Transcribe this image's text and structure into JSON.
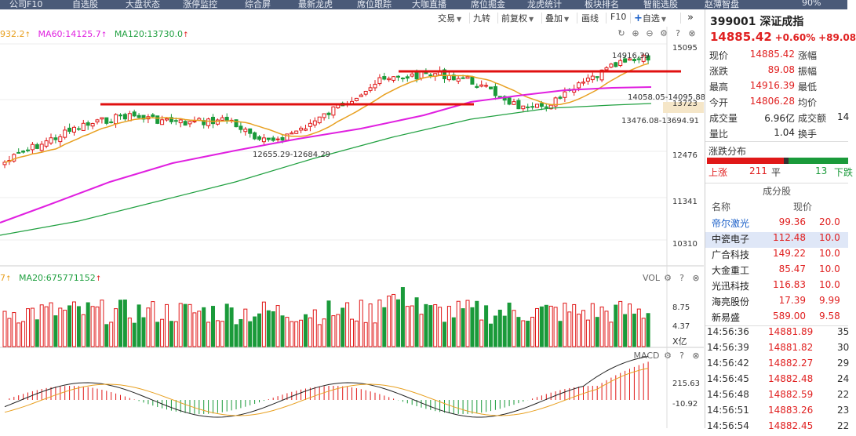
{
  "topnav": [
    "公司F10",
    "自选股",
    "大盘状态",
    "涨停监控",
    "综合屏",
    "最新龙虎",
    "席位跟踪",
    "大咖直播",
    "席位掘金",
    "龙虎统计",
    "板块排名",
    "智能选股",
    "赵薄智盘",
    "90%"
  ],
  "toolbar": {
    "items": [
      "交易",
      "九转",
      "前复权",
      "叠加",
      "画线",
      "F10",
      "自选"
    ],
    "plus": "+",
    "more": "»"
  },
  "ma_legend": {
    "ma_partial": "932.2",
    "ma60": "MA60:14125.7",
    "ma120": "MA120:13730.0",
    "ma60_color": "#e020e0",
    "ma120_color": "#20a040"
  },
  "vol_legend": {
    "partial": "7",
    "ma20": "MA20:675771152"
  },
  "price_axis": [
    "15095",
    "13723",
    "12476",
    "11341",
    "10310"
  ],
  "vol_axis": [
    "8.75",
    "4.37",
    "X亿"
  ],
  "macd_axis": [
    "215.63",
    "-10.92"
  ],
  "annotations": {
    "high": "14916.39",
    "range1": "14058.05-14095.88",
    "range2": "13476.08-13694.91",
    "low": "12655.29-12684.29"
  },
  "pane_labels": {
    "vol": "VOL",
    "macd": "MACD"
  },
  "chart_data": {
    "type": "candlestick",
    "price_range": [
      10000,
      15300
    ],
    "horizontal_lines": [
      13900,
      14550
    ],
    "ma_series_colors": {
      "ma_short": "#e8a020",
      "ma60": "#e020e0",
      "ma120": "#20a040"
    }
  },
  "panel": {
    "code": "399001",
    "name": "深证成指",
    "price": "14885.42",
    "pct": "+0.60%",
    "chg": "+89.08",
    "quote": [
      {
        "l1": "现价",
        "v1": "14885.42",
        "l2": "涨幅",
        "v2": ""
      },
      {
        "l1": "涨跌",
        "v1": "89.08",
        "l2": "振幅",
        "v2": ""
      },
      {
        "l1": "最高",
        "v1": "14916.39",
        "l2": "最低",
        "v2": ""
      },
      {
        "l1": "今开",
        "v1": "14806.28",
        "l2": "均价",
        "v2": ""
      },
      {
        "l1": "成交量",
        "v1": "6.96亿",
        "l2": "成交额",
        "v2": "14"
      },
      {
        "l1": "量比",
        "v1": "1.04",
        "l2": "换手",
        "v2": ""
      }
    ],
    "dist_title": "涨跌分布",
    "dist": {
      "up_label": "上涨",
      "up": "211",
      "flat_label": "平",
      "flat": "13",
      "down_label": "下跌"
    },
    "comp_title": "成分股",
    "comp_head": {
      "name": "名称",
      "price": "现价"
    },
    "components": [
      {
        "name": "帝尔激光",
        "price": "99.36",
        "chg": "20.0"
      },
      {
        "name": "中瓷电子",
        "price": "112.48",
        "chg": "10.0"
      },
      {
        "name": "广合科技",
        "price": "149.22",
        "chg": "10.0"
      },
      {
        "name": "大金重工",
        "price": "85.47",
        "chg": "10.0"
      },
      {
        "name": "光迅科技",
        "price": "116.83",
        "chg": "10.0"
      },
      {
        "name": "海亮股份",
        "price": "17.39",
        "chg": "9.99"
      },
      {
        "name": "新易盛",
        "price": "589.00",
        "chg": "9.58"
      }
    ],
    "trades": [
      {
        "t": "14:56:36",
        "p": "14881.89",
        "v": "35"
      },
      {
        "t": "14:56:39",
        "p": "14881.82",
        "v": "30"
      },
      {
        "t": "14:56:42",
        "p": "14882.27",
        "v": "29"
      },
      {
        "t": "14:56:45",
        "p": "14882.48",
        "v": "24"
      },
      {
        "t": "14:56:48",
        "p": "14882.59",
        "v": "22"
      },
      {
        "t": "14:56:51",
        "p": "14883.26",
        "v": "23"
      },
      {
        "t": "14:56:54",
        "p": "14882.45",
        "v": "22"
      }
    ]
  }
}
